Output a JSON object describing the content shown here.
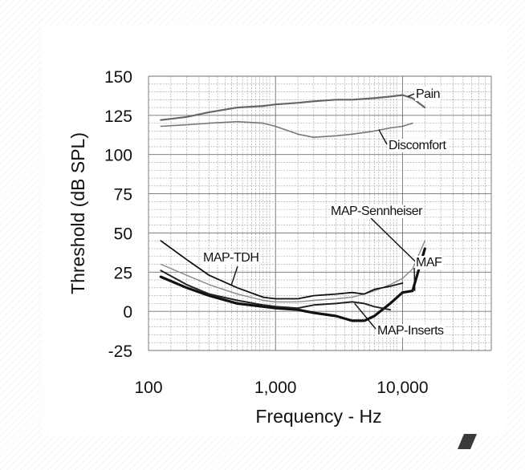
{
  "chart_data": {
    "type": "line",
    "xlabel": "Frequency - Hz",
    "ylabel": "Threshold (dB SPL)",
    "xscale": "log",
    "xlim": [
      100,
      50000
    ],
    "ylim": [
      -25,
      150
    ],
    "x_ticks": [
      {
        "value": 100,
        "label": "100"
      },
      {
        "value": 1000,
        "label": "1,000"
      },
      {
        "value": 10000,
        "label": "10,000"
      }
    ],
    "y_ticks": [
      {
        "value": 150,
        "label": "150"
      },
      {
        "value": 125,
        "label": "125"
      },
      {
        "value": 100,
        "label": "100"
      },
      {
        "value": 75,
        "label": "75"
      },
      {
        "value": 50,
        "label": "50"
      },
      {
        "value": 25,
        "label": "25"
      },
      {
        "value": 0,
        "label": "0"
      },
      {
        "value": -25,
        "label": "-25"
      }
    ],
    "grid": true,
    "series": [
      {
        "name": "Pain",
        "color": "#666666",
        "width": 2.2,
        "x": [
          125,
          200,
          300,
          500,
          800,
          1000,
          1500,
          2000,
          3000,
          4000,
          6000,
          8000,
          10000,
          12000,
          15000
        ],
        "y": [
          122,
          124,
          127,
          130,
          131,
          132,
          133,
          134,
          135,
          135,
          136,
          137,
          138,
          136,
          130
        ]
      },
      {
        "name": "Discomfort",
        "color": "#777777",
        "width": 1.6,
        "x": [
          125,
          200,
          300,
          500,
          800,
          1000,
          1500,
          2000,
          3000,
          4000,
          6000,
          8000,
          10000,
          12000
        ],
        "y": [
          118,
          119,
          120,
          121,
          120,
          118,
          113,
          111,
          112,
          113,
          115,
          117,
          118,
          120
        ]
      },
      {
        "name": "MAP-Sennheiser",
        "color": "#8a8a8a",
        "width": 1.4,
        "x": [
          125,
          200,
          300,
          500,
          800,
          1000,
          1500,
          2000,
          3000,
          4000,
          5000,
          6000,
          8000,
          10000,
          12000,
          15000
        ],
        "y": [
          30,
          23,
          17,
          11,
          7,
          6,
          6,
          7,
          8,
          9,
          11,
          13,
          17,
          21,
          27,
          45
        ]
      },
      {
        "name": "MAP-TDH",
        "color": "#111111",
        "width": 1.8,
        "x": [
          125,
          200,
          300,
          500,
          800,
          1000,
          1500,
          2000,
          3000,
          4000,
          5000,
          6000,
          8000,
          10000
        ],
        "y": [
          45,
          33,
          23,
          15,
          9,
          8,
          8,
          10,
          11,
          12,
          11,
          14,
          16,
          18
        ]
      },
      {
        "name": "MAF",
        "color": "#111111",
        "width": 3.2,
        "x": [
          125,
          200,
          300,
          500,
          800,
          1000,
          1500,
          2000,
          3000,
          4000,
          5000,
          6000,
          8000,
          10000,
          12000,
          15000
        ],
        "y": [
          22,
          15,
          10,
          5,
          3,
          2,
          1,
          -1,
          -3,
          -6,
          -6,
          -3,
          5,
          12,
          13,
          40
        ]
      },
      {
        "name": "MAP-Inserts",
        "color": "#222222",
        "width": 2.0,
        "x": [
          125,
          200,
          300,
          500,
          800,
          1000,
          1500,
          2000,
          3000,
          4000,
          5000,
          6000,
          8000
        ],
        "y": [
          26,
          17,
          11,
          7,
          4,
          3,
          2,
          4,
          5,
          6,
          5,
          3,
          1
        ]
      }
    ],
    "annotations": [
      {
        "text": "Pain",
        "series": "Pain"
      },
      {
        "text": "Discomfort",
        "series": "Discomfort"
      },
      {
        "text": "MAP-Sennheiser",
        "series": "MAP-Sennheiser"
      },
      {
        "text": "MAP-TDH",
        "series": "MAP-TDH"
      },
      {
        "text": "MAF",
        "series": "MAF"
      },
      {
        "text": "MAP-Inserts",
        "series": "MAP-Inserts"
      }
    ]
  }
}
